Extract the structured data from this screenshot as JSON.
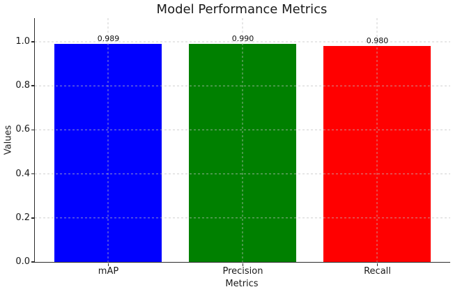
{
  "chart_data": {
    "type": "bar",
    "title": "Model Performance Metrics",
    "xlabel": "Metrics",
    "ylabel": "Values",
    "categories": [
      "mAP",
      "Precision",
      "Recall"
    ],
    "values": [
      0.989,
      0.99,
      0.98
    ],
    "value_labels": [
      "0.989",
      "0.990",
      "0.980"
    ],
    "bar_colors": [
      "#0000ff",
      "#008000",
      "#ff0000"
    ],
    "yticks": [
      0.0,
      0.2,
      0.4,
      0.6,
      0.8,
      1.0
    ],
    "ytick_labels": [
      "0.0",
      "0.2",
      "0.4",
      "0.6",
      "0.8",
      "1.0"
    ],
    "ylim": [
      0,
      1.107
    ],
    "grid": true,
    "grid_linestyle": "dashed",
    "legend_position": "none"
  },
  "colors": {
    "background": "#ffffff",
    "spine": "#2b2b2b",
    "grid": "#c0c0c0",
    "text": "#1a1a1a"
  }
}
